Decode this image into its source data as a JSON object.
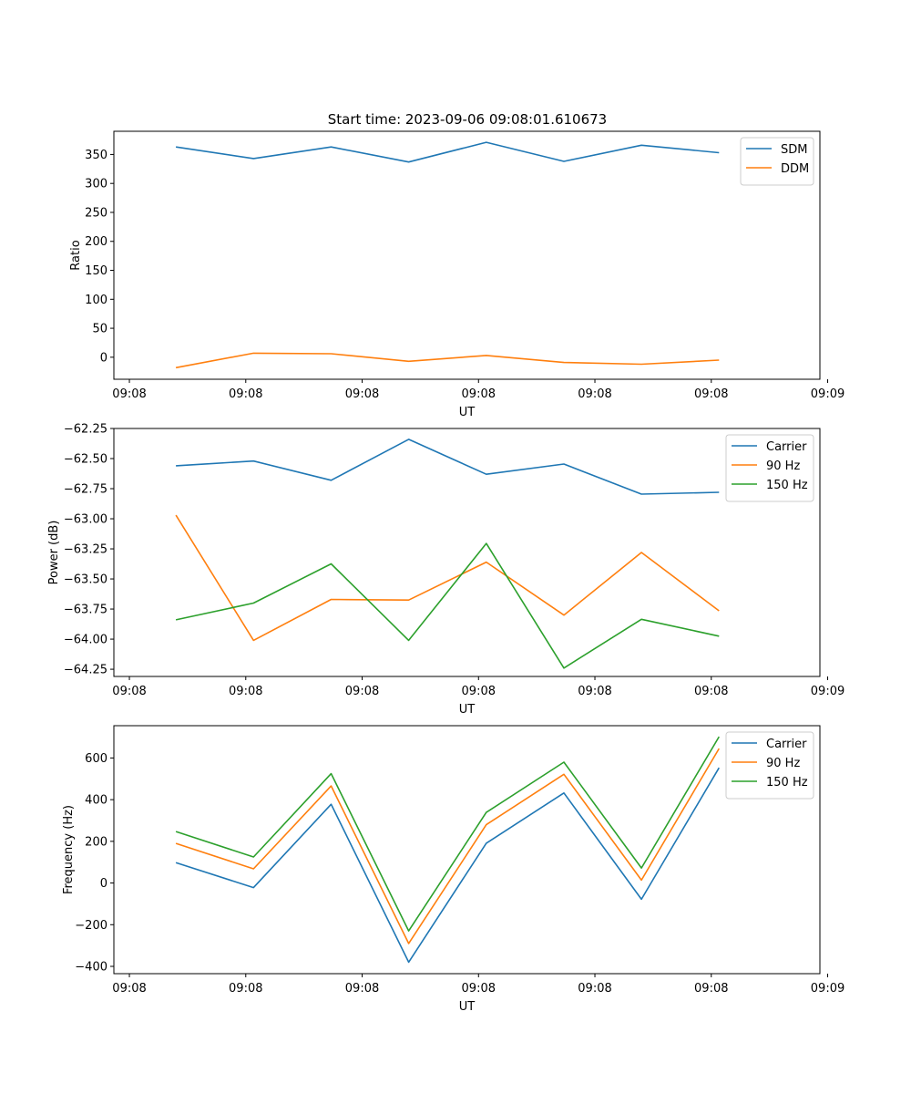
{
  "figure": {
    "title": "Start time: 2023-09-06 09:08:01.610673"
  },
  "colors": {
    "blue": "#1f77b4",
    "orange": "#ff7f0e",
    "green": "#2ca02c"
  },
  "chart_data": [
    {
      "type": "line",
      "title": "Start time: 2023-09-06 09:08:01.610673",
      "xlabel": "UT",
      "ylabel": "Ratio",
      "x": [
        1,
        2,
        3,
        4,
        5,
        6,
        7,
        8
      ],
      "xlim": [
        0.2,
        9.3
      ],
      "xticks": [
        0.4,
        1.9,
        3.4,
        4.9,
        6.4,
        7.9,
        9.4
      ],
      "xtick_labels": [
        "09:08",
        "09:08",
        "09:08",
        "09:08",
        "09:08",
        "09:08",
        "09:09"
      ],
      "ylim": [
        -38,
        390
      ],
      "yticks": [
        0,
        50,
        100,
        150,
        200,
        250,
        300,
        350
      ],
      "ytick_labels": [
        "0",
        "50",
        "100",
        "150",
        "200",
        "250",
        "300",
        "350"
      ],
      "legend": "top-right",
      "series": [
        {
          "name": "SDM",
          "color": "#1f77b4",
          "values": [
            363,
            343,
            363,
            337,
            371,
            338,
            366,
            353
          ]
        },
        {
          "name": "DDM",
          "color": "#ff7f0e",
          "values": [
            -18,
            7,
            6,
            -7,
            3,
            -9,
            -12,
            -5
          ]
        }
      ]
    },
    {
      "type": "line",
      "xlabel": "UT",
      "ylabel": "Power (dB)",
      "x": [
        1,
        2,
        3,
        4,
        5,
        6,
        7,
        8
      ],
      "xlim": [
        0.2,
        9.3
      ],
      "xticks": [
        0.4,
        1.9,
        3.4,
        4.9,
        6.4,
        7.9,
        9.4
      ],
      "xtick_labels": [
        "09:08",
        "09:08",
        "09:08",
        "09:08",
        "09:08",
        "09:08",
        "09:09"
      ],
      "ylim": [
        -64.31,
        -62.25
      ],
      "yticks": [
        -64.25,
        -64.0,
        -63.75,
        -63.5,
        -63.25,
        -63.0,
        -62.75,
        -62.5,
        -62.25
      ],
      "ytick_labels": [
        "−64.25",
        "−64.00",
        "−63.75",
        "−63.50",
        "−63.25",
        "−63.00",
        "−62.75",
        "−62.50",
        "−62.25"
      ],
      "legend": "top-right",
      "series": [
        {
          "name": "Carrier",
          "color": "#1f77b4",
          "values": [
            -62.56,
            -62.52,
            -62.68,
            -62.34,
            -62.63,
            -62.545,
            -62.795,
            -62.78
          ]
        },
        {
          "name": "90 Hz",
          "color": "#ff7f0e",
          "values": [
            -62.97,
            -64.01,
            -63.67,
            -63.675,
            -63.36,
            -63.8,
            -63.28,
            -63.765
          ]
        },
        {
          "name": "150 Hz",
          "color": "#2ca02c",
          "values": [
            -63.84,
            -63.7,
            -63.375,
            -64.01,
            -63.205,
            -64.24,
            -63.835,
            -63.975
          ]
        }
      ]
    },
    {
      "type": "line",
      "xlabel": "UT",
      "ylabel": "Frequency (Hz)",
      "x": [
        1,
        2,
        3,
        4,
        5,
        6,
        7,
        8
      ],
      "xlim": [
        0.2,
        9.3
      ],
      "xticks": [
        0.4,
        1.9,
        3.4,
        4.9,
        6.4,
        7.9,
        9.4
      ],
      "xtick_labels": [
        "09:08",
        "09:08",
        "09:08",
        "09:08",
        "09:08",
        "09:08",
        "09:09"
      ],
      "ylim": [
        -435,
        755
      ],
      "yticks": [
        -400,
        -200,
        0,
        200,
        400,
        600
      ],
      "ytick_labels": [
        "−400",
        "−200",
        "0",
        "200",
        "400",
        "600"
      ],
      "legend": "top-right",
      "series": [
        {
          "name": "Carrier",
          "color": "#1f77b4",
          "values": [
            98,
            -22,
            378,
            -380,
            191,
            432,
            -78,
            553
          ]
        },
        {
          "name": "90 Hz",
          "color": "#ff7f0e",
          "values": [
            190,
            68,
            466,
            -290,
            280,
            522,
            14,
            645
          ]
        },
        {
          "name": "150 Hz",
          "color": "#2ca02c",
          "values": [
            247,
            125,
            525,
            -230,
            339,
            580,
            72,
            702
          ]
        }
      ]
    }
  ]
}
